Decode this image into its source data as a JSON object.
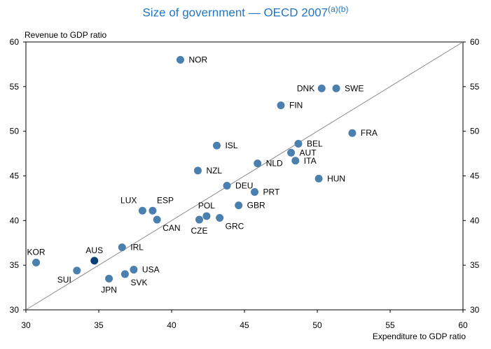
{
  "title": {
    "main": "Size of government — OECD 2007",
    "superscript": "(a)(b)"
  },
  "colors": {
    "title": "#1f77c4",
    "point": "#4a7fae",
    "highlight": "#0c3f78",
    "line": "#8a8a8a",
    "frame": "#000000"
  },
  "chart_data": {
    "type": "scatter",
    "title": "Size of government — OECD 2007",
    "xlabel": "Expenditure to GDP ratio",
    "ylabel": "Revenue to GDP ratio",
    "xlim": [
      30,
      60
    ],
    "ylim": [
      30,
      60
    ],
    "xticks": [
      30,
      35,
      40,
      45,
      50,
      55,
      60
    ],
    "yticks": [
      30,
      35,
      40,
      45,
      50,
      55,
      60
    ],
    "reference_line": {
      "from": [
        30,
        30
      ],
      "to": [
        60,
        60
      ]
    },
    "points": [
      {
        "label": "NOR",
        "x": 40.6,
        "y": 58.0,
        "label_pos": "right"
      },
      {
        "label": "DNK",
        "x": 50.3,
        "y": 54.8,
        "label_pos": "left"
      },
      {
        "label": "SWE",
        "x": 51.3,
        "y": 54.8,
        "label_pos": "right"
      },
      {
        "label": "FIN",
        "x": 47.5,
        "y": 52.9,
        "label_pos": "right"
      },
      {
        "label": "FRA",
        "x": 52.4,
        "y": 49.8,
        "label_pos": "right"
      },
      {
        "label": "ISL",
        "x": 43.1,
        "y": 48.4,
        "label_pos": "right"
      },
      {
        "label": "BEL",
        "x": 48.7,
        "y": 48.6,
        "label_pos": "right"
      },
      {
        "label": "AUT",
        "x": 48.2,
        "y": 47.6,
        "label_pos": "right"
      },
      {
        "label": "ITA",
        "x": 48.5,
        "y": 46.7,
        "label_pos": "right"
      },
      {
        "label": "NLD",
        "x": 45.9,
        "y": 46.4,
        "label_pos": "right"
      },
      {
        "label": "NZL",
        "x": 41.8,
        "y": 45.6,
        "label_pos": "right"
      },
      {
        "label": "HUN",
        "x": 50.1,
        "y": 44.7,
        "label_pos": "right"
      },
      {
        "label": "DEU",
        "x": 43.8,
        "y": 43.9,
        "label_pos": "right"
      },
      {
        "label": "PRT",
        "x": 45.7,
        "y": 43.2,
        "label_pos": "right"
      },
      {
        "label": "GBR",
        "x": 44.6,
        "y": 41.7,
        "label_pos": "right"
      },
      {
        "label": "LUX",
        "x": 38.0,
        "y": 41.1,
        "label_pos": "upper-left"
      },
      {
        "label": "ESP",
        "x": 38.7,
        "y": 41.1,
        "label_pos": "upper-right"
      },
      {
        "label": "POL",
        "x": 42.4,
        "y": 40.5,
        "label_pos": "above"
      },
      {
        "label": "CAN",
        "x": 39.0,
        "y": 40.1,
        "label_pos": "lower-right"
      },
      {
        "label": "CZE",
        "x": 41.9,
        "y": 40.1,
        "label_pos": "below"
      },
      {
        "label": "GRC",
        "x": 43.3,
        "y": 40.3,
        "label_pos": "lower-right"
      },
      {
        "label": "IRL",
        "x": 36.6,
        "y": 37.0,
        "label_pos": "right"
      },
      {
        "label": "KOR",
        "x": 30.7,
        "y": 35.3,
        "label_pos": "above"
      },
      {
        "label": "AUS",
        "x": 34.7,
        "y": 35.5,
        "label_pos": "above",
        "highlight": true
      },
      {
        "label": "USA",
        "x": 37.4,
        "y": 34.5,
        "label_pos": "right"
      },
      {
        "label": "SUI",
        "x": 33.5,
        "y": 34.4,
        "label_pos": "lower-left"
      },
      {
        "label": "SVK",
        "x": 36.8,
        "y": 34.0,
        "label_pos": "lower-right"
      },
      {
        "label": "JPN",
        "x": 35.7,
        "y": 33.5,
        "label_pos": "below"
      }
    ]
  }
}
